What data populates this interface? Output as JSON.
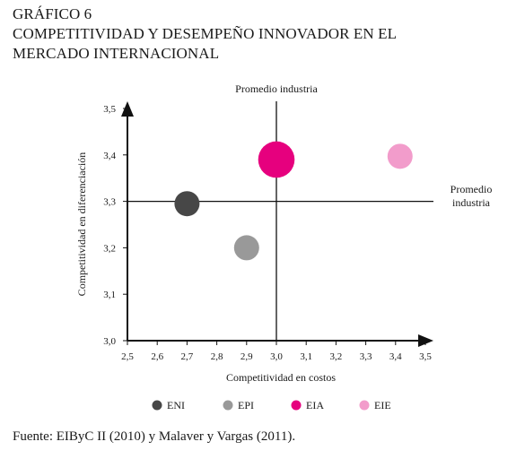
{
  "title_lines": [
    "GRÁFICO 6",
    "COMPETITIVIDAD Y DESEMPEÑO INNOVADOR EN EL",
    "MERCADO INTERNACIONAL"
  ],
  "source": "Fuente: EIByC II (2010) y Malaver y Vargas (2011).",
  "chart_data": {
    "type": "scatter",
    "xlabel": "Competitividad en costos",
    "ylabel": "Competitividad en diferenciación",
    "xlim": [
      2.5,
      3.5
    ],
    "ylim": [
      3.0,
      3.5
    ],
    "x_ticks": [
      "2,5",
      "2,6",
      "2,7",
      "2,8",
      "2,9",
      "3,0",
      "3,1",
      "3,2",
      "3,3",
      "3,4",
      "3,5"
    ],
    "y_ticks": [
      "3,0",
      "3,1",
      "3,2",
      "3,3",
      "3,4",
      "3,5"
    ],
    "reference_lines": {
      "x": 3.0,
      "x_label": "Promedio industria",
      "y": 3.3,
      "y_label_lines": [
        "Promedio",
        "industria"
      ]
    },
    "series": [
      {
        "name": "ENI",
        "x": 2.7,
        "y": 3.295,
        "color": "#474747",
        "size": 1.0
      },
      {
        "name": "EPI",
        "x": 2.9,
        "y": 3.2,
        "color": "#999999",
        "size": 1.0
      },
      {
        "name": "EIA",
        "x": 3.0,
        "y": 3.39,
        "color": "#e6007e",
        "size": 1.45
      },
      {
        "name": "EIE",
        "x": 3.415,
        "y": 3.397,
        "color": "#f29ccb",
        "size": 1.0
      }
    ],
    "legend_position": "bottom"
  }
}
